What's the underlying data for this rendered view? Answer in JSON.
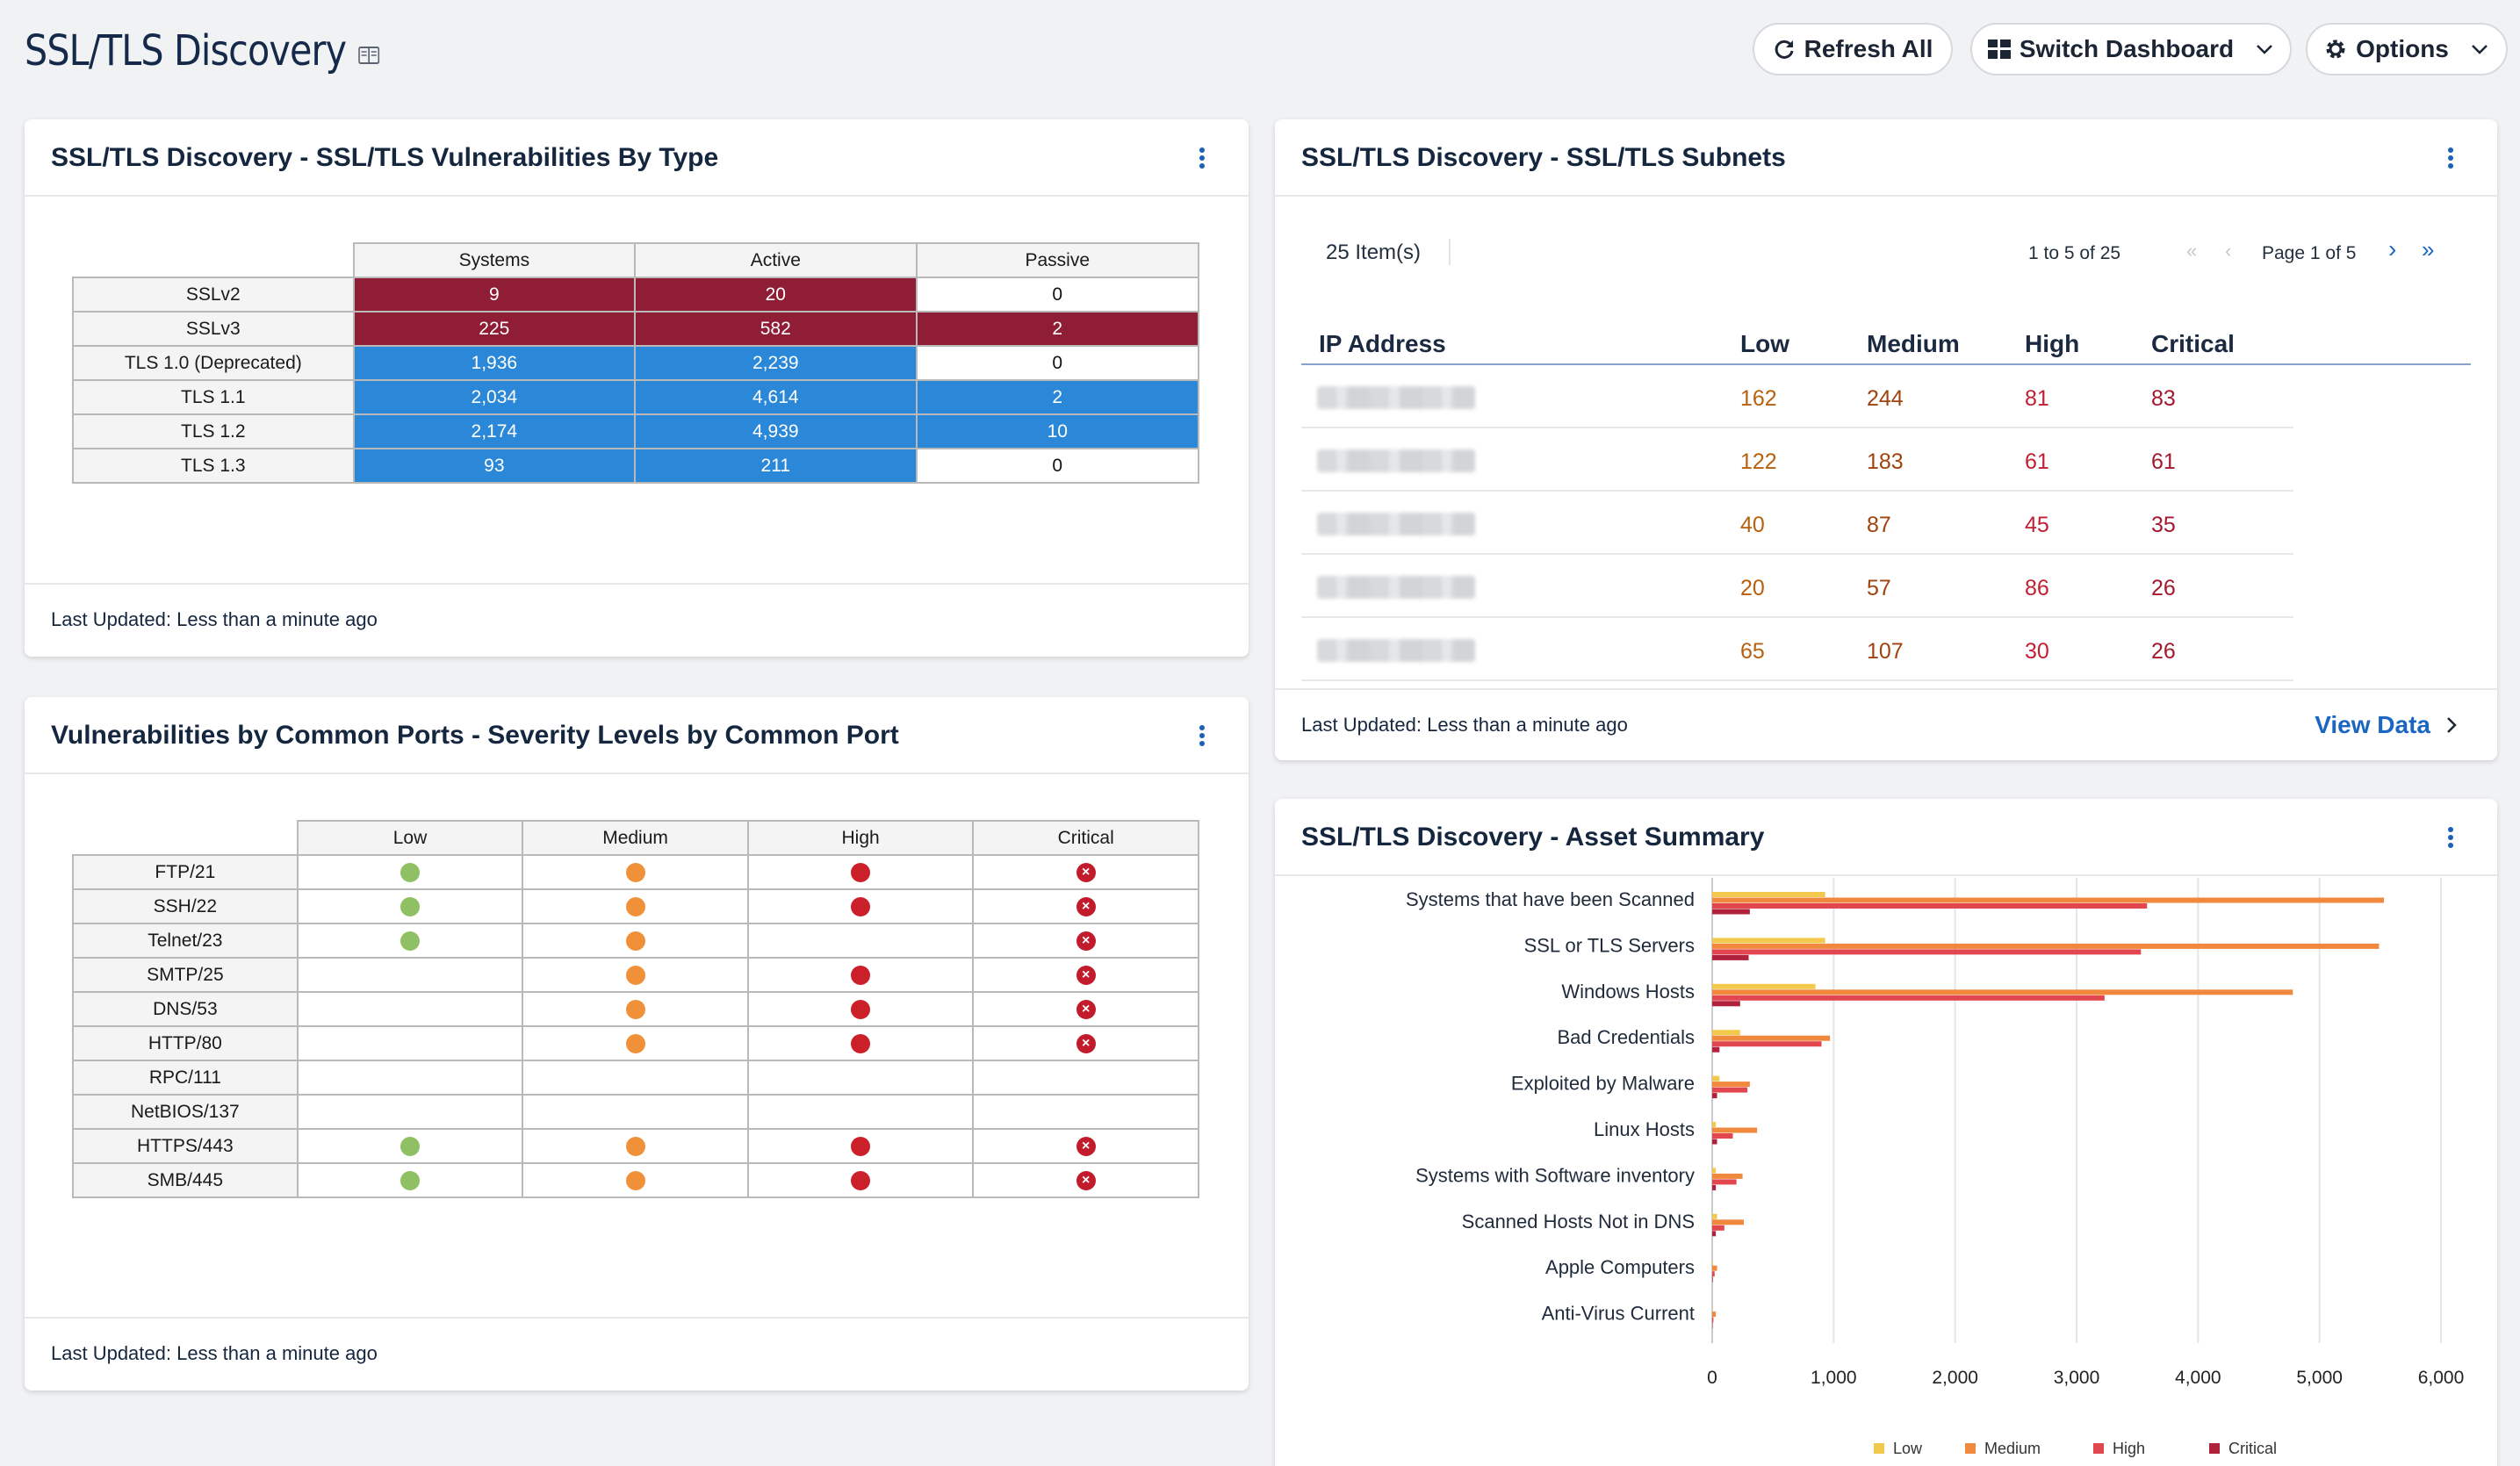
{
  "header": {
    "title": "SSL/TLS Discovery",
    "refresh_label": "Refresh All",
    "switch_label": "Switch Dashboard",
    "options_label": "Options"
  },
  "vuln_by_type": {
    "title": "SSL/TLS Discovery - SSL/TLS Vulnerabilities By Type",
    "columns": [
      "Systems",
      "Active",
      "Passive"
    ],
    "rows": [
      {
        "label": "SSLv2",
        "values": [
          "9",
          "20",
          "0"
        ],
        "colors": [
          "red",
          "red",
          "white"
        ]
      },
      {
        "label": "SSLv3",
        "values": [
          "225",
          "582",
          "2"
        ],
        "colors": [
          "red",
          "red",
          "red"
        ]
      },
      {
        "label": "TLS 1.0 (Deprecated)",
        "values": [
          "1,936",
          "2,239",
          "0"
        ],
        "colors": [
          "blue",
          "blue",
          "white"
        ]
      },
      {
        "label": "TLS 1.1",
        "values": [
          "2,034",
          "4,614",
          "2"
        ],
        "colors": [
          "blue",
          "blue",
          "blue"
        ]
      },
      {
        "label": "TLS 1.2",
        "values": [
          "2,174",
          "4,939",
          "10"
        ],
        "colors": [
          "blue",
          "blue",
          "blue"
        ]
      },
      {
        "label": "TLS 1.3",
        "values": [
          "93",
          "211",
          "0"
        ],
        "colors": [
          "blue",
          "blue",
          "white"
        ]
      }
    ],
    "footer": "Last Updated: Less than a minute ago"
  },
  "common_ports": {
    "title": "Vulnerabilities by Common Ports - Severity Levels by Common Port",
    "columns": [
      "Low",
      "Medium",
      "High",
      "Critical"
    ],
    "rows": [
      {
        "label": "FTP/21",
        "low": true,
        "medium": true,
        "high": true,
        "critical": true
      },
      {
        "label": "SSH/22",
        "low": true,
        "medium": true,
        "high": true,
        "critical": true
      },
      {
        "label": "Telnet/23",
        "low": true,
        "medium": true,
        "high": false,
        "critical": true
      },
      {
        "label": "SMTP/25",
        "low": false,
        "medium": true,
        "high": true,
        "critical": true
      },
      {
        "label": "DNS/53",
        "low": false,
        "medium": true,
        "high": true,
        "critical": true
      },
      {
        "label": "HTTP/80",
        "low": false,
        "medium": true,
        "high": true,
        "critical": true
      },
      {
        "label": "RPC/111",
        "low": false,
        "medium": false,
        "high": false,
        "critical": false
      },
      {
        "label": "NetBIOS/137",
        "low": false,
        "medium": false,
        "high": false,
        "critical": false
      },
      {
        "label": "HTTPS/443",
        "low": true,
        "medium": true,
        "high": true,
        "critical": true
      },
      {
        "label": "SMB/445",
        "low": true,
        "medium": true,
        "high": true,
        "critical": true
      }
    ],
    "footer": "Last Updated: Less than a minute ago"
  },
  "subnets": {
    "title": "SSL/TLS Discovery - SSL/TLS Subnets",
    "item_count": "25 Item(s)",
    "range_text": "1 to 5 of 25",
    "page_text": "Page 1 of 5",
    "columns": [
      "IP Address",
      "Low",
      "Medium",
      "High",
      "Critical"
    ],
    "rows": [
      {
        "low": "162",
        "medium": "244",
        "high": "81",
        "critical": "83"
      },
      {
        "low": "122",
        "medium": "183",
        "high": "61",
        "critical": "61"
      },
      {
        "low": "40",
        "medium": "87",
        "high": "45",
        "critical": "35"
      },
      {
        "low": "20",
        "medium": "57",
        "high": "86",
        "critical": "26"
      },
      {
        "low": "65",
        "medium": "107",
        "high": "30",
        "critical": "26"
      }
    ],
    "footer": "Last Updated: Less than a minute ago",
    "view_data": "View Data"
  },
  "asset_summary": {
    "title": "SSL/TLS Discovery - Asset Summary"
  },
  "colors": {
    "low": "#f2c94c",
    "medium": "#f0883e",
    "high": "#e2464e",
    "critical": "#b0223c"
  },
  "chart_data": {
    "type": "bar",
    "orientation": "horizontal",
    "categories": [
      "Systems that have been Scanned",
      "SSL or TLS Servers",
      "Windows Hosts",
      "Bad Credentials",
      "Exploited by Malware",
      "Linux Hosts",
      "Systems with Software inventory",
      "Scanned Hosts Not in DNS",
      "Apple Computers",
      "Anti-Virus Current"
    ],
    "series": [
      {
        "name": "Low",
        "values": [
          930,
          930,
          850,
          230,
          60,
          30,
          30,
          40,
          5,
          3
        ]
      },
      {
        "name": "Medium",
        "values": [
          5530,
          5490,
          4780,
          970,
          310,
          370,
          250,
          260,
          40,
          30
        ]
      },
      {
        "name": "High",
        "values": [
          3580,
          3530,
          3230,
          900,
          290,
          170,
          200,
          100,
          20,
          10
        ]
      },
      {
        "name": "Critical",
        "values": [
          310,
          300,
          230,
          60,
          40,
          40,
          30,
          30,
          5,
          3
        ]
      }
    ],
    "xlim": [
      0,
      6000
    ],
    "xticks": [
      "0",
      "1,000",
      "2,000",
      "3,000",
      "4,000",
      "5,000",
      "6,000"
    ],
    "legend": [
      "Low",
      "Medium",
      "High",
      "Critical"
    ],
    "legend_position": "bottom"
  }
}
